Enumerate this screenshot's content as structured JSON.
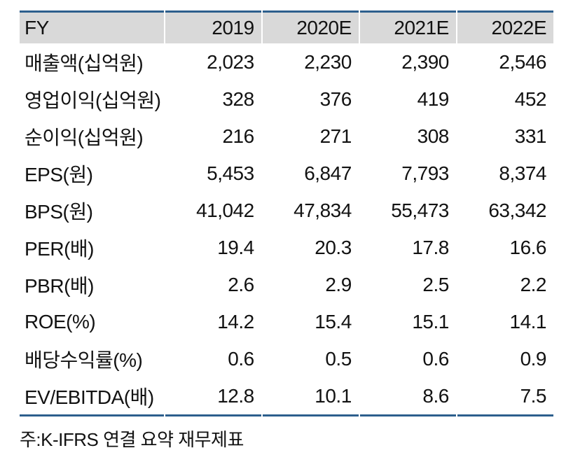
{
  "colors": {
    "accent_rule": "#2d5f8d",
    "header_bg": "#d9d9d9",
    "text": "#121212",
    "background": "#ffffff"
  },
  "table": {
    "header": {
      "label": "FY",
      "cols": [
        "2019",
        "2020E",
        "2021E",
        "2022E"
      ]
    },
    "rows": [
      {
        "label": "매출액(십억원)",
        "values": [
          "2,023",
          "2,230",
          "2,390",
          "2,546"
        ]
      },
      {
        "label": "영업이익(십억원)",
        "values": [
          "328",
          "376",
          "419",
          "452"
        ]
      },
      {
        "label": "순이익(십억원)",
        "values": [
          "216",
          "271",
          "308",
          "331"
        ]
      },
      {
        "label": "EPS(원)",
        "values": [
          "5,453",
          "6,847",
          "7,793",
          "8,374"
        ]
      },
      {
        "label": "BPS(원)",
        "values": [
          "41,042",
          "47,834",
          "55,473",
          "63,342"
        ]
      },
      {
        "label": "PER(배)",
        "values": [
          "19.4",
          "20.3",
          "17.8",
          "16.6"
        ]
      },
      {
        "label": "PBR(배)",
        "values": [
          "2.6",
          "2.9",
          "2.5",
          "2.2"
        ]
      },
      {
        "label": "ROE(%)",
        "values": [
          "14.2",
          "15.4",
          "15.1",
          "14.1"
        ]
      },
      {
        "label": "배당수익률(%)",
        "values": [
          "0.6",
          "0.5",
          "0.6",
          "0.9"
        ]
      },
      {
        "label": "EV/EBITDA(배)",
        "values": [
          "12.8",
          "10.1",
          "8.6",
          "7.5"
        ]
      }
    ],
    "footnote": "주:K-IFRS 연결 요약 재무제표"
  }
}
